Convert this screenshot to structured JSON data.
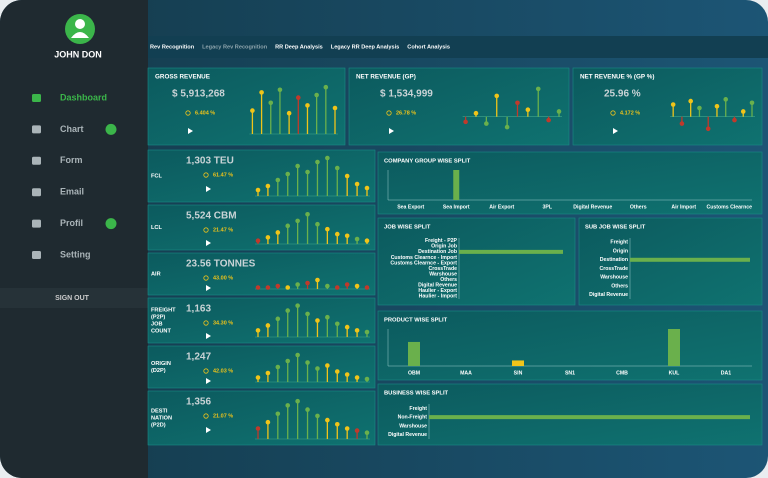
{
  "sidebar": {
    "user": "JOHN DON",
    "menu": [
      {
        "label": "Dashboard",
        "active": true,
        "badge": false
      },
      {
        "label": "Chart",
        "active": false,
        "badge": true
      },
      {
        "label": "Form",
        "active": false,
        "badge": false
      },
      {
        "label": "Email",
        "active": false,
        "badge": false
      },
      {
        "label": "Profil",
        "active": false,
        "badge": true
      },
      {
        "label": "Setting",
        "active": false,
        "badge": false
      }
    ],
    "signout": "SIGN OUT"
  },
  "tabs": [
    "Rev Recognition",
    "Legacy Rev Recognition",
    "RR Deep Analysis",
    "Legacy RR Deep Analysis",
    "Cohort Analysis"
  ],
  "palette": {
    "g": "#6ab04c",
    "y": "#f0c419",
    "r": "#c0392b"
  },
  "kpis": [
    {
      "title": "GROSS REVENUE",
      "value": "$ 5,913,268",
      "change": "6.404 %",
      "ylim": [
        0,
        100
      ],
      "values": [
        45,
        80,
        60,
        85,
        40,
        70,
        55,
        75,
        90,
        50
      ],
      "colors": "yyggyryggy"
    },
    {
      "title": "NET REVENUE (GP)",
      "value": "$ 1,534,999",
      "change": "26.78 %",
      "ylim": [
        -50,
        100
      ],
      "values": [
        -15,
        10,
        -20,
        60,
        -30,
        40,
        20,
        80,
        -10,
        15
      ],
      "colors": "rygygrygrg"
    },
    {
      "title": "NET REVENUE % (GP %)",
      "value": "25.96 %",
      "change": "4.172 %",
      "ylim": [
        -50,
        100
      ],
      "values": [
        35,
        -20,
        45,
        25,
        -35,
        30,
        50,
        -10,
        15,
        40
      ],
      "colors": "yrygrygryg"
    }
  ],
  "side_kpis": [
    {
      "label": [
        "FCL"
      ],
      "value": "1,303 TEU",
      "change": "61.47 %",
      "ylim": [
        0,
        100
      ],
      "values": [
        15,
        25,
        40,
        55,
        75,
        60,
        85,
        95,
        70,
        50,
        30,
        20
      ],
      "colors": "yygggggggyyy"
    },
    {
      "label": [
        "LCL"
      ],
      "value": "5,524 CBM",
      "change": "21.47 %",
      "ylim": [
        0,
        100
      ],
      "values": [
        10,
        20,
        35,
        55,
        70,
        90,
        60,
        45,
        30,
        25,
        15,
        10
      ],
      "colors": "ryyggggyyygy"
    },
    {
      "label": [
        "AIR"
      ],
      "value": "23.56 TONNES",
      "change": "43.00 %",
      "ylim": [
        0,
        100
      ],
      "values": [
        5,
        5,
        10,
        5,
        15,
        20,
        30,
        10,
        5,
        15,
        10,
        5
      ],
      "colors": "rrrygrygrryr"
    },
    {
      "label": [
        "FREIGHT",
        "(P2P)",
        "JOB",
        "COUNT"
      ],
      "value": "1,163",
      "change": "34.30 %",
      "ylim": [
        0,
        100
      ],
      "values": [
        20,
        35,
        55,
        80,
        95,
        70,
        50,
        60,
        40,
        30,
        20,
        15
      ],
      "colors": "yyggggyggyyg"
    },
    {
      "label": [
        "ORIGIN",
        "(D2P)"
      ],
      "value": "1,247",
      "change": "42.03 %",
      "ylim": [
        0,
        100
      ],
      "values": [
        15,
        30,
        50,
        70,
        90,
        65,
        45,
        55,
        35,
        25,
        15,
        10
      ],
      "colors": "yygggggyyyyg"
    },
    {
      "label": [
        "DESTI",
        "NATION",
        "(P2D)"
      ],
      "value": "1,356",
      "change": "21.07 %",
      "ylim": [
        0,
        100
      ],
      "values": [
        25,
        40,
        60,
        80,
        90,
        70,
        55,
        45,
        35,
        25,
        20,
        15
      ],
      "colors": "rygggggyyyrg"
    }
  ],
  "splits": [
    {
      "type": "column",
      "title": "COMPANY GROUP WISE SPLIT",
      "categories": [
        "Sea Export",
        "Sea Import",
        "Air Export",
        "3PL",
        "Digital Revenue",
        "Others",
        "Air Import",
        "Customs Clearnce"
      ],
      "values": [
        0,
        100,
        0,
        0,
        0,
        0,
        0,
        0
      ],
      "colors": [
        "#6ab04c",
        "#6ab04c",
        "#6ab04c",
        "#6ab04c",
        "#6ab04c",
        "#6ab04c",
        "#6ab04c",
        "#6ab04c"
      ],
      "ylim": [
        0,
        100
      ]
    },
    {
      "type": "bar",
      "title": "JOB WISE SPLIT",
      "categories": [
        "Freight - P2P",
        "Origin Job",
        "Destination Job",
        "Customs Clearnce - Import",
        "Customs Clearnce - Export",
        "CrossTrade",
        "Warshouse",
        "Others",
        "Digital Revenue",
        "Haulier - Export",
        "Haulier - Import"
      ],
      "values": [
        0,
        0,
        100,
        0,
        0,
        0,
        0,
        0,
        0,
        0,
        0
      ],
      "color": "#6ab04c",
      "xlim": [
        0,
        100
      ]
    },
    {
      "type": "bar",
      "title": "SUB JOB WISE SPLIT",
      "categories": [
        "Freight",
        "Origin",
        "Destination",
        "CrossTrade",
        "Warshouse",
        "Others",
        "Digital Revenue"
      ],
      "values": [
        0,
        0,
        100,
        0,
        0,
        0,
        0
      ],
      "color": "#6ab04c",
      "xlim": [
        0,
        100
      ]
    },
    {
      "type": "column",
      "title": "PRODUCT WISE SPLIT",
      "categories": [
        "OBM",
        "MAA",
        "SIN",
        "SN1",
        "CMB",
        "KUL",
        "DA1"
      ],
      "values": [
        65,
        0,
        15,
        0,
        0,
        100,
        0
      ],
      "colors": [
        "#6ab04c",
        "#6ab04c",
        "#f0c419",
        "#6ab04c",
        "#6ab04c",
        "#6ab04c",
        "#6ab04c"
      ],
      "ylim": [
        0,
        100
      ]
    },
    {
      "type": "bar",
      "title": "BUSINESS WISE SPLIT",
      "categories": [
        "Freight",
        "Non-Freight",
        "Warshouse",
        "Digital Revenue"
      ],
      "values": [
        0,
        100,
        0,
        0
      ],
      "color": "#6ab04c",
      "xlim": [
        0,
        100
      ]
    }
  ]
}
